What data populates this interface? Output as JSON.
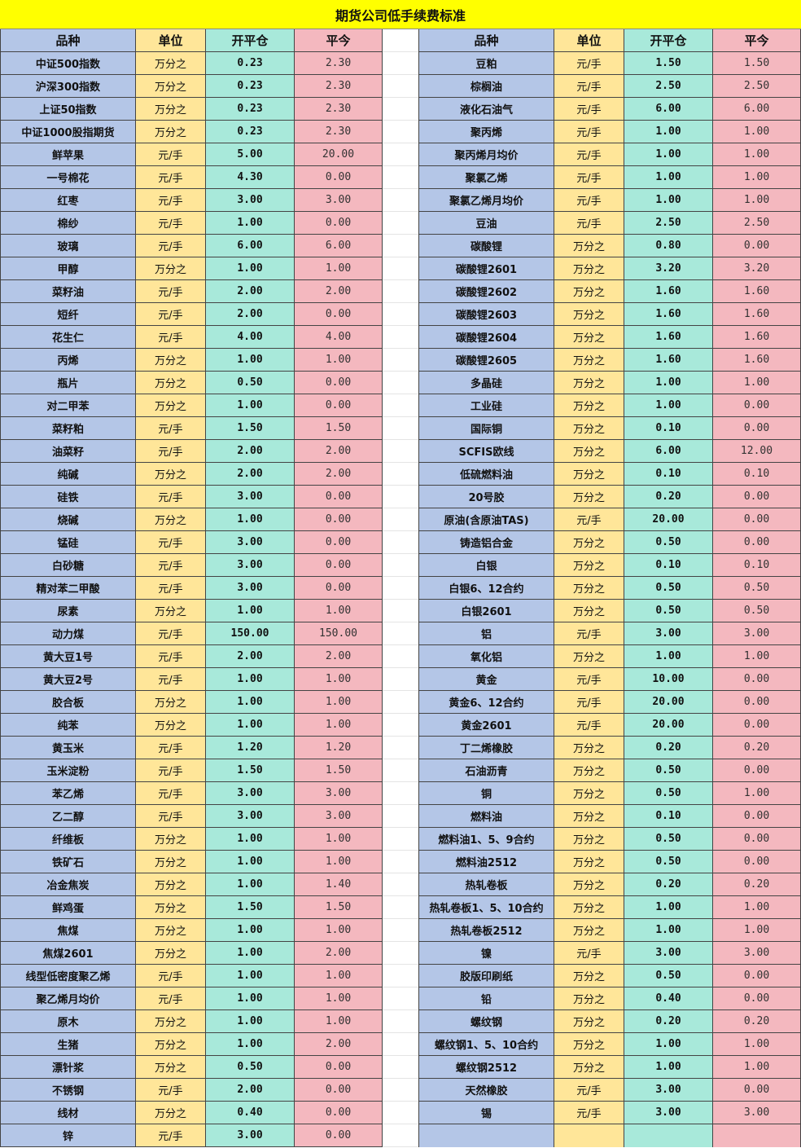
{
  "title": "期货公司低手续费标准",
  "headers": [
    "品种",
    "单位",
    "开平仓",
    "平今"
  ],
  "colors": {
    "title_bg": "#ffff00",
    "variety_col": "#b4c6e7",
    "unit_col": "#ffe699",
    "open_close_col": "#a8e9da",
    "close_today_col": "#f4b8bf"
  },
  "left_rows": [
    [
      "中证500指数",
      "万分之",
      "0.23",
      "2.30"
    ],
    [
      "沪深300指数",
      "万分之",
      "0.23",
      "2.30"
    ],
    [
      "上证50指数",
      "万分之",
      "0.23",
      "2.30"
    ],
    [
      "中证1000股指期货",
      "万分之",
      "0.23",
      "2.30"
    ],
    [
      "鲜苹果",
      "元/手",
      "5.00",
      "20.00"
    ],
    [
      "一号棉花",
      "元/手",
      "4.30",
      "0.00"
    ],
    [
      "红枣",
      "元/手",
      "3.00",
      "3.00"
    ],
    [
      "棉纱",
      "元/手",
      "1.00",
      "0.00"
    ],
    [
      "玻璃",
      "元/手",
      "6.00",
      "6.00"
    ],
    [
      "甲醇",
      "万分之",
      "1.00",
      "1.00"
    ],
    [
      "菜籽油",
      "元/手",
      "2.00",
      "2.00"
    ],
    [
      "短纤",
      "元/手",
      "2.00",
      "0.00"
    ],
    [
      "花生仁",
      "元/手",
      "4.00",
      "4.00"
    ],
    [
      "丙烯",
      "万分之",
      "1.00",
      "1.00"
    ],
    [
      "瓶片",
      "万分之",
      "0.50",
      "0.00"
    ],
    [
      "对二甲苯",
      "万分之",
      "1.00",
      "0.00"
    ],
    [
      "菜籽粕",
      "元/手",
      "1.50",
      "1.50"
    ],
    [
      "油菜籽",
      "元/手",
      "2.00",
      "2.00"
    ],
    [
      "纯碱",
      "万分之",
      "2.00",
      "2.00"
    ],
    [
      "硅铁",
      "元/手",
      "3.00",
      "0.00"
    ],
    [
      "烧碱",
      "万分之",
      "1.00",
      "0.00"
    ],
    [
      "锰硅",
      "元/手",
      "3.00",
      "0.00"
    ],
    [
      "白砂糖",
      "元/手",
      "3.00",
      "0.00"
    ],
    [
      "精对苯二甲酸",
      "元/手",
      "3.00",
      "0.00"
    ],
    [
      "尿素",
      "万分之",
      "1.00",
      "1.00"
    ],
    [
      "动力煤",
      "元/手",
      "150.00",
      "150.00"
    ],
    [
      "黄大豆1号",
      "元/手",
      "2.00",
      "2.00"
    ],
    [
      "黄大豆2号",
      "元/手",
      "1.00",
      "1.00"
    ],
    [
      "胶合板",
      "万分之",
      "1.00",
      "1.00"
    ],
    [
      "纯苯",
      "万分之",
      "1.00",
      "1.00"
    ],
    [
      "黄玉米",
      "元/手",
      "1.20",
      "1.20"
    ],
    [
      "玉米淀粉",
      "元/手",
      "1.50",
      "1.50"
    ],
    [
      "苯乙烯",
      "元/手",
      "3.00",
      "3.00"
    ],
    [
      "乙二醇",
      "元/手",
      "3.00",
      "3.00"
    ],
    [
      "纤维板",
      "万分之",
      "1.00",
      "1.00"
    ],
    [
      "铁矿石",
      "万分之",
      "1.00",
      "1.00"
    ],
    [
      "冶金焦炭",
      "万分之",
      "1.00",
      "1.40"
    ],
    [
      "鲜鸡蛋",
      "万分之",
      "1.50",
      "1.50"
    ],
    [
      "焦煤",
      "万分之",
      "1.00",
      "1.00"
    ],
    [
      "焦煤2601",
      "万分之",
      "1.00",
      "2.00"
    ],
    [
      "线型低密度聚乙烯",
      "元/手",
      "1.00",
      "1.00"
    ],
    [
      "聚乙烯月均价",
      "元/手",
      "1.00",
      "1.00"
    ],
    [
      "原木",
      "万分之",
      "1.00",
      "1.00"
    ],
    [
      "生猪",
      "万分之",
      "1.00",
      "2.00"
    ],
    [
      "漂针浆",
      "万分之",
      "0.50",
      "0.00"
    ],
    [
      "不锈钢",
      "元/手",
      "2.00",
      "0.00"
    ],
    [
      "线材",
      "万分之",
      "0.40",
      "0.00"
    ],
    [
      "锌",
      "元/手",
      "3.00",
      "0.00"
    ]
  ],
  "right_rows": [
    [
      "豆粕",
      "元/手",
      "1.50",
      "1.50"
    ],
    [
      "棕榈油",
      "元/手",
      "2.50",
      "2.50"
    ],
    [
      "液化石油气",
      "元/手",
      "6.00",
      "6.00"
    ],
    [
      "聚丙烯",
      "元/手",
      "1.00",
      "1.00"
    ],
    [
      "聚丙烯月均价",
      "元/手",
      "1.00",
      "1.00"
    ],
    [
      "聚氯乙烯",
      "元/手",
      "1.00",
      "1.00"
    ],
    [
      "聚氯乙烯月均价",
      "元/手",
      "1.00",
      "1.00"
    ],
    [
      "豆油",
      "元/手",
      "2.50",
      "2.50"
    ],
    [
      "碳酸锂",
      "万分之",
      "0.80",
      "0.00"
    ],
    [
      "碳酸锂2601",
      "万分之",
      "3.20",
      "3.20"
    ],
    [
      "碳酸锂2602",
      "万分之",
      "1.60",
      "1.60"
    ],
    [
      "碳酸锂2603",
      "万分之",
      "1.60",
      "1.60"
    ],
    [
      "碳酸锂2604",
      "万分之",
      "1.60",
      "1.60"
    ],
    [
      "碳酸锂2605",
      "万分之",
      "1.60",
      "1.60"
    ],
    [
      "多晶硅",
      "万分之",
      "1.00",
      "1.00"
    ],
    [
      "工业硅",
      "万分之",
      "1.00",
      "0.00"
    ],
    [
      "国际铜",
      "万分之",
      "0.10",
      "0.00"
    ],
    [
      "SCFIS欧线",
      "万分之",
      "6.00",
      "12.00"
    ],
    [
      "低硫燃料油",
      "万分之",
      "0.10",
      "0.10"
    ],
    [
      "20号胶",
      "万分之",
      "0.20",
      "0.00"
    ],
    [
      "原油(含原油TAS)",
      "元/手",
      "20.00",
      "0.00"
    ],
    [
      "铸造铝合金",
      "万分之",
      "0.50",
      "0.00"
    ],
    [
      "白银",
      "万分之",
      "0.10",
      "0.10"
    ],
    [
      "白银6、12合约",
      "万分之",
      "0.50",
      "0.50"
    ],
    [
      "白银2601",
      "万分之",
      "0.50",
      "0.50"
    ],
    [
      "铝",
      "元/手",
      "3.00",
      "3.00"
    ],
    [
      "氧化铝",
      "万分之",
      "1.00",
      "1.00"
    ],
    [
      "黄金",
      "元/手",
      "10.00",
      "0.00"
    ],
    [
      "黄金6、12合约",
      "元/手",
      "20.00",
      "0.00"
    ],
    [
      "黄金2601",
      "元/手",
      "20.00",
      "0.00"
    ],
    [
      "丁二烯橡胶",
      "万分之",
      "0.20",
      "0.20"
    ],
    [
      "石油沥青",
      "万分之",
      "0.50",
      "0.00"
    ],
    [
      "铜",
      "万分之",
      "0.50",
      "1.00"
    ],
    [
      "燃料油",
      "万分之",
      "0.10",
      "0.00"
    ],
    [
      "燃料油1、5、9合约",
      "万分之",
      "0.50",
      "0.00"
    ],
    [
      "燃料油2512",
      "万分之",
      "0.50",
      "0.00"
    ],
    [
      "热轧卷板",
      "万分之",
      "0.20",
      "0.20"
    ],
    [
      "热轧卷板1、5、10合约",
      "万分之",
      "1.00",
      "1.00"
    ],
    [
      "热轧卷板2512",
      "万分之",
      "1.00",
      "1.00"
    ],
    [
      "镍",
      "元/手",
      "3.00",
      "3.00"
    ],
    [
      "胶版印刷纸",
      "万分之",
      "0.50",
      "0.00"
    ],
    [
      "铅",
      "万分之",
      "0.40",
      "0.00"
    ],
    [
      "螺纹钢",
      "万分之",
      "0.20",
      "0.20"
    ],
    [
      "螺纹钢1、5、10合约",
      "万分之",
      "1.00",
      "1.00"
    ],
    [
      "螺纹钢2512",
      "万分之",
      "1.00",
      "1.00"
    ],
    [
      "天然橡胶",
      "元/手",
      "3.00",
      "0.00"
    ],
    [
      "锡",
      "元/手",
      "3.00",
      "3.00"
    ]
  ]
}
